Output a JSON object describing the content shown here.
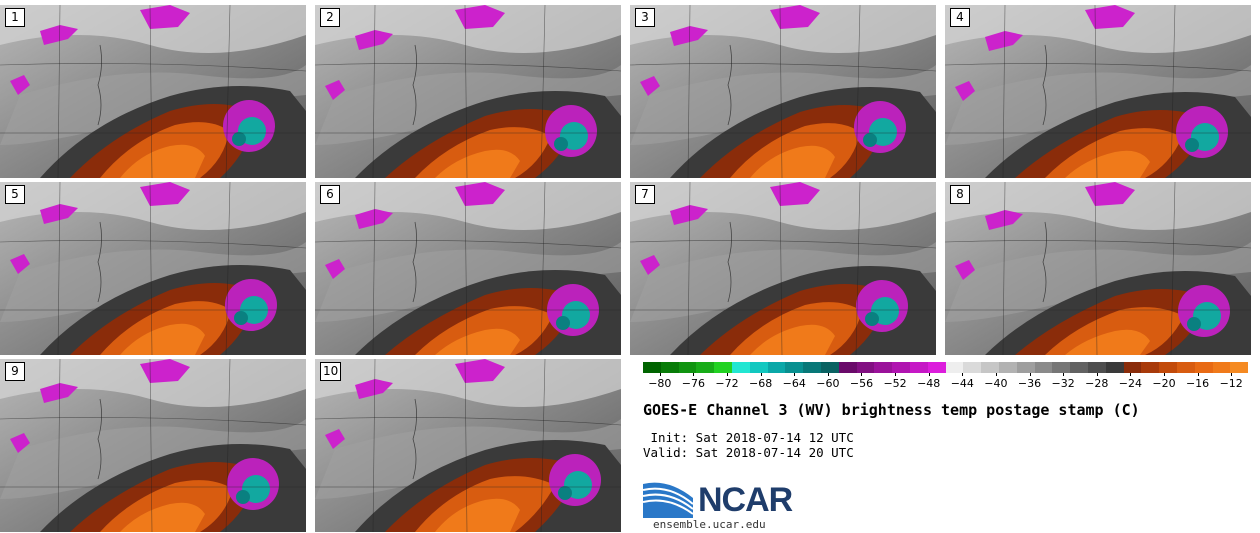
{
  "panels": [
    {
      "label": "1"
    },
    {
      "label": "2"
    },
    {
      "label": "3"
    },
    {
      "label": "4"
    },
    {
      "label": "5"
    },
    {
      "label": "6"
    },
    {
      "label": "7"
    },
    {
      "label": "8"
    },
    {
      "label": "9"
    },
    {
      "label": "10"
    }
  ],
  "colorbar": {
    "colors": [
      "#006400",
      "#087c08",
      "#109410",
      "#18ac18",
      "#22d222",
      "#22e6d2",
      "#12c8c0",
      "#0aa8a8",
      "#089090",
      "#087878",
      "#0a6262",
      "#6a0a6a",
      "#820f82",
      "#9a129a",
      "#b014b0",
      "#c618c6",
      "#dc1ddc",
      "#eeeeee",
      "#dadada",
      "#c6c6c6",
      "#b2b2b2",
      "#9e9e9e",
      "#8a8a8a",
      "#767676",
      "#626262",
      "#4e4e4e",
      "#3a3a3a",
      "#8a2c0a",
      "#a83a0a",
      "#c24a0a",
      "#d85c10",
      "#e86a14",
      "#f07a1a",
      "#f58a22"
    ],
    "tick_labels": [
      "−80",
      "−76",
      "−72",
      "−68",
      "−64",
      "−60",
      "−56",
      "−52",
      "−48",
      "−44",
      "−40",
      "−36",
      "−32",
      "−28",
      "−24",
      "−20",
      "−16",
      "−12"
    ]
  },
  "title": "GOES-E Channel 3 (WV) brightness temp postage stamp (C)",
  "init_line": " Init: Sat 2018-07-14 12 UTC",
  "valid_line": "Valid: Sat 2018-07-14 20 UTC",
  "logo": {
    "text": "NCAR",
    "url": "ensemble.ucar.edu",
    "color": "#1f3d6b"
  }
}
